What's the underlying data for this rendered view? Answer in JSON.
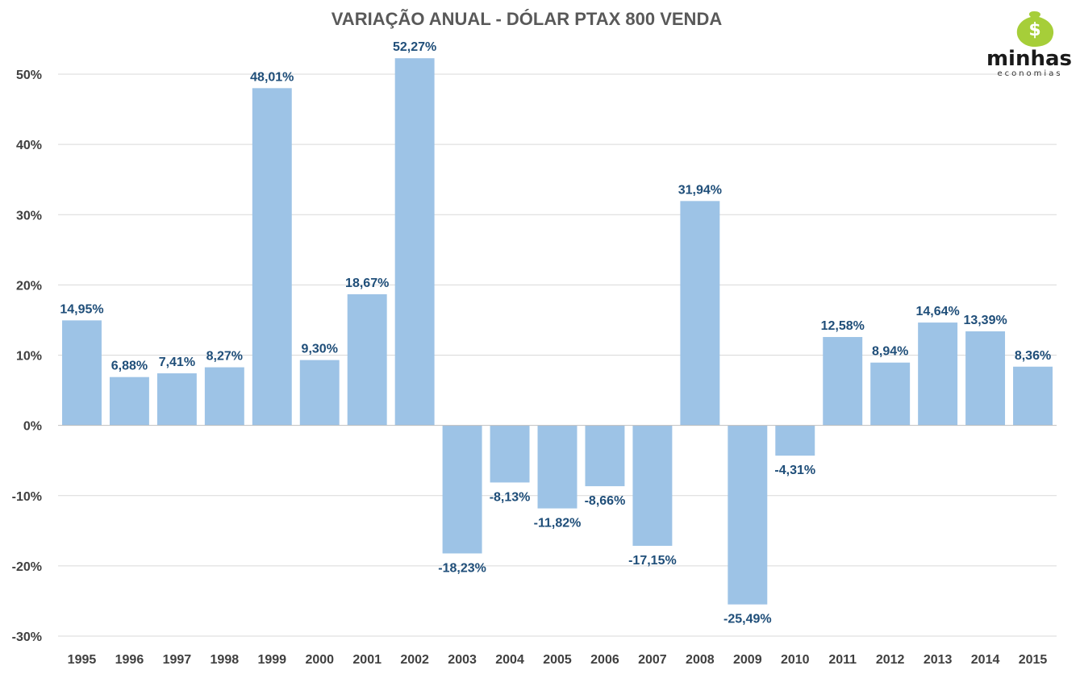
{
  "chart_data": {
    "type": "bar",
    "title": "VARIAÇÃO ANUAL - DÓLAR PTAX 800 VENDA",
    "xlabel": "",
    "ylabel": "",
    "ylim": [
      -30,
      50
    ],
    "yticks": [
      50,
      40,
      30,
      20,
      10,
      0,
      -10,
      -20,
      -30
    ],
    "ytick_labels": [
      "50%",
      "40%",
      "30%",
      "20%",
      "10%",
      "0%",
      "-10%",
      "-20%",
      "-30%"
    ],
    "grid": true,
    "categories": [
      "1995",
      "1996",
      "1997",
      "1998",
      "1999",
      "2000",
      "2001",
      "2002",
      "2003",
      "2004",
      "2005",
      "2006",
      "2007",
      "2008",
      "2009",
      "2010",
      "2011",
      "2012",
      "2013",
      "2014",
      "2015"
    ],
    "values": [
      14.95,
      6.88,
      7.41,
      8.27,
      48.01,
      9.3,
      18.67,
      52.27,
      -18.23,
      -8.13,
      -11.82,
      -8.66,
      -17.15,
      31.94,
      -25.49,
      -4.31,
      12.58,
      8.94,
      14.64,
      13.39,
      8.36
    ],
    "data_labels": [
      "14,95%",
      "6,88%",
      "7,41%",
      "8,27%",
      "48,01%",
      "9,30%",
      "18,67%",
      "52,27%",
      "-18,23%",
      "-8,13%",
      "-11,82%",
      "-8,66%",
      "-17,15%",
      "31,94%",
      "-25,49%",
      "-4,31%",
      "12,58%",
      "8,94%",
      "14,64%",
      "13,39%",
      "8,36%"
    ],
    "bar_color": "#9dc3e6",
    "label_color": "#1f4e79"
  },
  "logo": {
    "main": "minhas",
    "sub": "economias",
    "symbol": "$",
    "icon": "money-bag-icon",
    "color": "#a6ce39"
  }
}
